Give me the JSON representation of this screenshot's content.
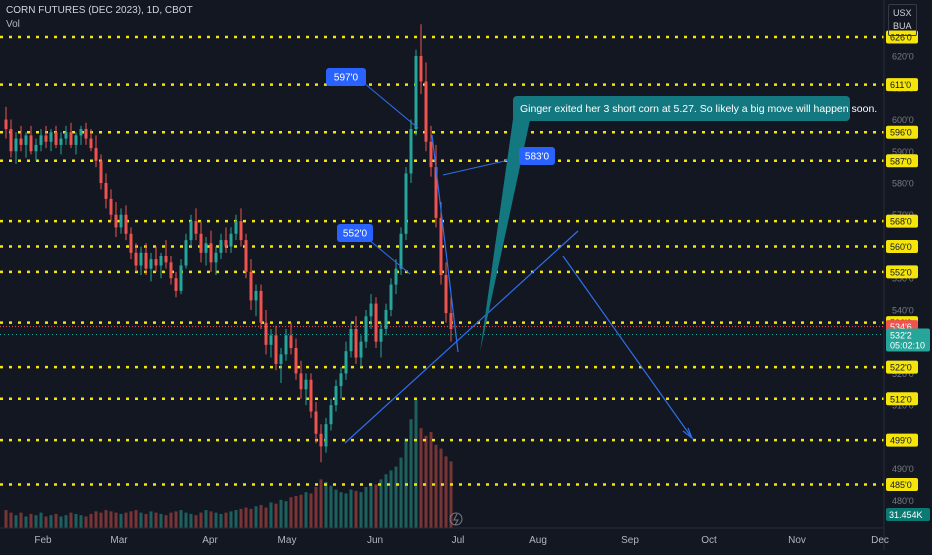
{
  "header": {
    "title": "CORN FUTURES (DEC 2023), 1D, CBOT",
    "volume_label": "Vol",
    "currency": "USX",
    "unit": "BUA"
  },
  "colors": {
    "background": "#131722",
    "up": "#26a69a",
    "down": "#ef5350",
    "level": "#f5e50a",
    "trend": "#2f6fec",
    "note_bg": "#13787f"
  },
  "chart_data": {
    "type": "candlestick",
    "instrument": "CORN FUTURES (DEC 2023), 1D, CBOT",
    "x_ticks": [
      "Feb",
      "Mar",
      "Apr",
      "May",
      "Jun",
      "Jul",
      "Aug",
      "Sep",
      "Oct",
      "Nov",
      "Dec"
    ],
    "y_range": [
      474,
      634
    ],
    "y_ticks": [
      "480'0",
      "490'0",
      "500'0",
      "510'0",
      "520'0",
      "530'0",
      "540'0",
      "550'0",
      "560'0",
      "570'0",
      "580'0",
      "590'0",
      "600'0",
      "610'0",
      "620'0"
    ],
    "levels": [
      {
        "value": 626,
        "label": "626'0"
      },
      {
        "value": 611,
        "label": "611'0"
      },
      {
        "value": 596,
        "label": "596'0"
      },
      {
        "value": 587,
        "label": "587'0"
      },
      {
        "value": 568,
        "label": "568'0"
      },
      {
        "value": 560,
        "label": "560'0"
      },
      {
        "value": 552,
        "label": "552'0"
      },
      {
        "value": 536,
        "label": "536'0"
      },
      {
        "value": 522,
        "label": "522'0"
      },
      {
        "value": 512,
        "label": "512'0"
      },
      {
        "value": 499,
        "label": "499'0"
      },
      {
        "value": 485,
        "label": "485'0"
      }
    ],
    "current_price": {
      "value": 534.75,
      "label": "534'6"
    },
    "last_price": {
      "value": 532.25,
      "label": "532'2",
      "countdown": "05:02:10"
    },
    "volume_label": "31.454K",
    "callouts": [
      {
        "label": "597'0",
        "value": 597
      },
      {
        "label": "583'0",
        "value": 583
      },
      {
        "label": "552'0",
        "value": 552
      }
    ],
    "annotation": "Ginger exited her 3 short corn at 5.27. So likely a big move will happen soon.",
    "candles": [
      {
        "o": 600,
        "h": 604,
        "l": 594,
        "c": 597
      },
      {
        "o": 597,
        "h": 600,
        "l": 588,
        "c": 590
      },
      {
        "o": 590,
        "h": 596,
        "l": 586,
        "c": 594
      },
      {
        "o": 594,
        "h": 598,
        "l": 590,
        "c": 592
      },
      {
        "o": 592,
        "h": 596,
        "l": 588,
        "c": 595
      },
      {
        "o": 595,
        "h": 598,
        "l": 589,
        "c": 590
      },
      {
        "o": 590,
        "h": 594,
        "l": 587,
        "c": 592
      },
      {
        "o": 592,
        "h": 597,
        "l": 590,
        "c": 595
      },
      {
        "o": 595,
        "h": 598,
        "l": 591,
        "c": 593
      },
      {
        "o": 593,
        "h": 597,
        "l": 590,
        "c": 596
      },
      {
        "o": 596,
        "h": 598,
        "l": 591,
        "c": 592
      },
      {
        "o": 592,
        "h": 596,
        "l": 589,
        "c": 594
      },
      {
        "o": 594,
        "h": 598,
        "l": 592,
        "c": 596
      },
      {
        "o": 596,
        "h": 599,
        "l": 591,
        "c": 592
      },
      {
        "o": 592,
        "h": 596,
        "l": 589,
        "c": 595
      },
      {
        "o": 595,
        "h": 598,
        "l": 592,
        "c": 597
      },
      {
        "o": 597,
        "h": 599,
        "l": 592,
        "c": 594
      },
      {
        "o": 594,
        "h": 597,
        "l": 590,
        "c": 591
      },
      {
        "o": 591,
        "h": 595,
        "l": 585,
        "c": 587
      },
      {
        "o": 587,
        "h": 589,
        "l": 578,
        "c": 580
      },
      {
        "o": 580,
        "h": 583,
        "l": 572,
        "c": 575
      },
      {
        "o": 575,
        "h": 578,
        "l": 568,
        "c": 570
      },
      {
        "o": 570,
        "h": 574,
        "l": 563,
        "c": 566
      },
      {
        "o": 566,
        "h": 572,
        "l": 564,
        "c": 570
      },
      {
        "o": 570,
        "h": 573,
        "l": 562,
        "c": 564
      },
      {
        "o": 564,
        "h": 566,
        "l": 556,
        "c": 558
      },
      {
        "o": 558,
        "h": 561,
        "l": 552,
        "c": 554
      },
      {
        "o": 554,
        "h": 560,
        "l": 551,
        "c": 558
      },
      {
        "o": 558,
        "h": 561,
        "l": 551,
        "c": 553
      },
      {
        "o": 553,
        "h": 558,
        "l": 549,
        "c": 556
      },
      {
        "o": 556,
        "h": 560,
        "l": 552,
        "c": 554
      },
      {
        "o": 554,
        "h": 558,
        "l": 550,
        "c": 557
      },
      {
        "o": 557,
        "h": 562,
        "l": 553,
        "c": 555
      },
      {
        "o": 555,
        "h": 557,
        "l": 548,
        "c": 550
      },
      {
        "o": 550,
        "h": 552,
        "l": 544,
        "c": 546
      },
      {
        "o": 546,
        "h": 556,
        "l": 545,
        "c": 554
      },
      {
        "o": 554,
        "h": 564,
        "l": 553,
        "c": 562
      },
      {
        "o": 562,
        "h": 570,
        "l": 560,
        "c": 568
      },
      {
        "o": 568,
        "h": 572,
        "l": 562,
        "c": 564
      },
      {
        "o": 564,
        "h": 568,
        "l": 555,
        "c": 558
      },
      {
        "o": 558,
        "h": 563,
        "l": 554,
        "c": 561
      },
      {
        "o": 561,
        "h": 565,
        "l": 552,
        "c": 555
      },
      {
        "o": 555,
        "h": 560,
        "l": 551,
        "c": 558
      },
      {
        "o": 558,
        "h": 564,
        "l": 556,
        "c": 562
      },
      {
        "o": 562,
        "h": 566,
        "l": 558,
        "c": 560
      },
      {
        "o": 560,
        "h": 566,
        "l": 558,
        "c": 564
      },
      {
        "o": 564,
        "h": 570,
        "l": 562,
        "c": 568
      },
      {
        "o": 568,
        "h": 572,
        "l": 560,
        "c": 562
      },
      {
        "o": 562,
        "h": 564,
        "l": 550,
        "c": 552
      },
      {
        "o": 552,
        "h": 556,
        "l": 540,
        "c": 543
      },
      {
        "o": 543,
        "h": 548,
        "l": 538,
        "c": 546
      },
      {
        "o": 546,
        "h": 548,
        "l": 534,
        "c": 536
      },
      {
        "o": 536,
        "h": 540,
        "l": 526,
        "c": 529
      },
      {
        "o": 529,
        "h": 534,
        "l": 525,
        "c": 532
      },
      {
        "o": 532,
        "h": 535,
        "l": 521,
        "c": 523
      },
      {
        "o": 523,
        "h": 528,
        "l": 517,
        "c": 526
      },
      {
        "o": 526,
        "h": 534,
        "l": 524,
        "c": 532
      },
      {
        "o": 532,
        "h": 536,
        "l": 526,
        "c": 528
      },
      {
        "o": 528,
        "h": 531,
        "l": 518,
        "c": 520
      },
      {
        "o": 520,
        "h": 524,
        "l": 512,
        "c": 515
      },
      {
        "o": 515,
        "h": 520,
        "l": 510,
        "c": 518
      },
      {
        "o": 518,
        "h": 520,
        "l": 506,
        "c": 508
      },
      {
        "o": 508,
        "h": 511,
        "l": 498,
        "c": 501
      },
      {
        "o": 501,
        "h": 504,
        "l": 492,
        "c": 497
      },
      {
        "o": 497,
        "h": 506,
        "l": 495,
        "c": 504
      },
      {
        "o": 504,
        "h": 512,
        "l": 502,
        "c": 510
      },
      {
        "o": 510,
        "h": 518,
        "l": 508,
        "c": 516
      },
      {
        "o": 516,
        "h": 522,
        "l": 512,
        "c": 520
      },
      {
        "o": 520,
        "h": 530,
        "l": 518,
        "c": 527
      },
      {
        "o": 527,
        "h": 536,
        "l": 525,
        "c": 534
      },
      {
        "o": 534,
        "h": 538,
        "l": 523,
        "c": 525
      },
      {
        "o": 525,
        "h": 532,
        "l": 522,
        "c": 530
      },
      {
        "o": 530,
        "h": 540,
        "l": 528,
        "c": 538
      },
      {
        "o": 538,
        "h": 545,
        "l": 534,
        "c": 542
      },
      {
        "o": 542,
        "h": 544,
        "l": 528,
        "c": 530
      },
      {
        "o": 530,
        "h": 536,
        "l": 525,
        "c": 534
      },
      {
        "o": 534,
        "h": 542,
        "l": 532,
        "c": 540
      },
      {
        "o": 540,
        "h": 550,
        "l": 538,
        "c": 548
      },
      {
        "o": 548,
        "h": 556,
        "l": 545,
        "c": 553
      },
      {
        "o": 553,
        "h": 566,
        "l": 551,
        "c": 564
      },
      {
        "o": 564,
        "h": 585,
        "l": 562,
        "c": 583
      },
      {
        "o": 583,
        "h": 600,
        "l": 580,
        "c": 597
      },
      {
        "o": 597,
        "h": 622,
        "l": 595,
        "c": 620
      },
      {
        "o": 620,
        "h": 630,
        "l": 608,
        "c": 612
      },
      {
        "o": 612,
        "h": 618,
        "l": 590,
        "c": 593
      },
      {
        "o": 593,
        "h": 598,
        "l": 582,
        "c": 585
      },
      {
        "o": 585,
        "h": 592,
        "l": 566,
        "c": 569
      },
      {
        "o": 569,
        "h": 574,
        "l": 548,
        "c": 551
      },
      {
        "o": 551,
        "h": 555,
        "l": 536,
        "c": 539
      },
      {
        "o": 539,
        "h": 544,
        "l": 530,
        "c": 534
      }
    ],
    "volumes": [
      14,
      12,
      10,
      12,
      9,
      11,
      10,
      12,
      9,
      10,
      11,
      9,
      10,
      12,
      11,
      10,
      9,
      11,
      13,
      12,
      14,
      13,
      12,
      11,
      12,
      13,
      14,
      12,
      11,
      13,
      12,
      11,
      10,
      12,
      13,
      14,
      12,
      11,
      10,
      12,
      14,
      13,
      12,
      11,
      12,
      13,
      14,
      15,
      16,
      15,
      17,
      18,
      16,
      20,
      19,
      22,
      21,
      24,
      25,
      26,
      28,
      27,
      32,
      38,
      36,
      33,
      30,
      28,
      27,
      30,
      29,
      28,
      32,
      35,
      34,
      38,
      42,
      45,
      48,
      55,
      70,
      85,
      100,
      78,
      72,
      75,
      65,
      62,
      56,
      52
    ]
  }
}
